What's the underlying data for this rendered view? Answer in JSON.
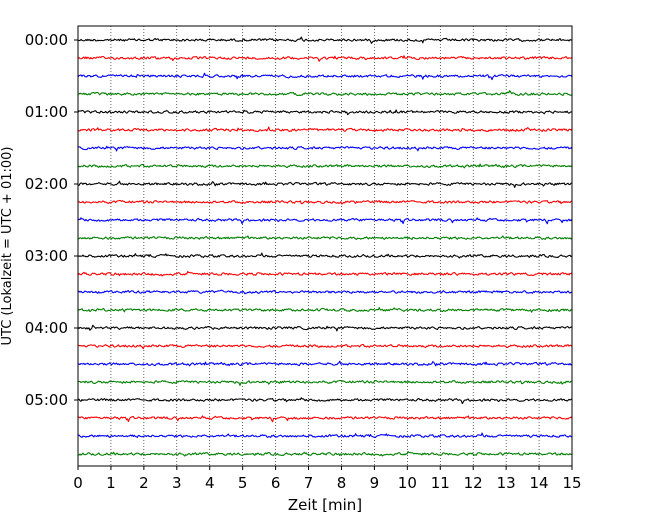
{
  "chart_data": {
    "type": "line",
    "xlabel": "Zeit  [min]",
    "ylabel": "UTC (Lokalzeit = UTC + 01:00)",
    "xlim": [
      0,
      15
    ],
    "x_ticks": [
      "0",
      "1",
      "2",
      "3",
      "4",
      "5",
      "6",
      "7",
      "8",
      "9",
      "10",
      "11",
      "12",
      "13",
      "14",
      "15"
    ],
    "y_tick_labels": [
      "00:00",
      "01:00",
      "02:00",
      "03:00",
      "04:00",
      "05:00"
    ],
    "grid": "vertical-dotted",
    "trace_minutes": 15,
    "trace_colors": [
      "#000000",
      "#ff0000",
      "#0000ff",
      "#008000"
    ],
    "traces": [
      "00:00",
      "00:15",
      "00:30",
      "00:45",
      "01:00",
      "01:15",
      "01:30",
      "01:45",
      "02:00",
      "02:15",
      "02:30",
      "02:45",
      "03:00",
      "03:15",
      "03:30",
      "03:45",
      "04:00",
      "04:15",
      "04:30",
      "04:45",
      "05:00",
      "05:15",
      "05:30",
      "05:45"
    ]
  }
}
